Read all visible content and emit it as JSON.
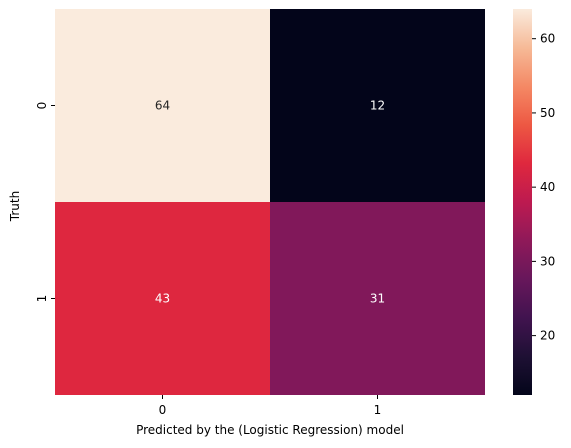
{
  "chart_data": {
    "type": "heatmap",
    "title": "",
    "xlabel": "Predicted by the (Logistic Regression) model",
    "ylabel": "Truth",
    "x_categories": [
      "0",
      "1"
    ],
    "y_categories": [
      "0",
      "1"
    ],
    "values": [
      [
        64,
        12
      ],
      [
        43,
        31
      ]
    ],
    "annotations": [
      [
        "64",
        "12"
      ],
      [
        "43",
        "31"
      ]
    ],
    "colormap": "rocket",
    "colorbar": {
      "vmin": 12,
      "vmax": 64,
      "ticks": [
        20,
        30,
        40,
        50,
        60
      ],
      "tick_labels": [
        "20",
        "30",
        "40",
        "50",
        "60"
      ]
    }
  }
}
